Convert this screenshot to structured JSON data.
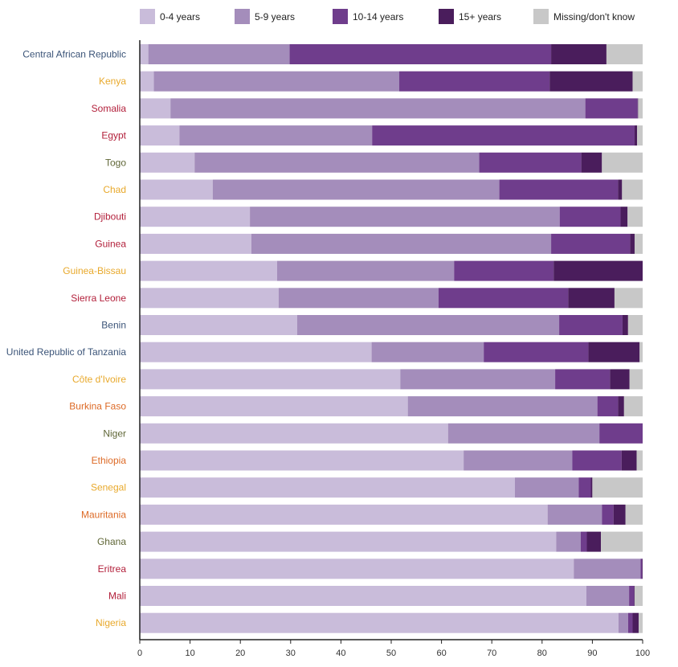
{
  "chart_data": {
    "type": "bar",
    "orientation": "horizontal",
    "stacked": true,
    "title": "",
    "xlabel": "",
    "ylabel": "",
    "xlim": [
      0,
      100
    ],
    "xticks": [
      0,
      10,
      20,
      30,
      40,
      50,
      60,
      70,
      80,
      90,
      100
    ],
    "legend_position": "top",
    "categories": [
      "Central African Republic",
      "Kenya",
      "Somalia",
      "Egypt",
      "Togo",
      "Chad",
      "Djibouti",
      "Guinea",
      "Guinea-Bissau",
      "Sierra Leone",
      "Benin",
      "United Republic of Tanzania",
      "Côte d'Ivoire",
      "Burkina Faso",
      "Niger",
      "Ethiopia",
      "Senegal",
      "Mauritania",
      "Ghana",
      "Eritrea",
      "Mali",
      "Nigeria"
    ],
    "category_colors": [
      "#3b5478",
      "#e8a92c",
      "#b21f3a",
      "#b21f3a",
      "#5f6636",
      "#e8a92c",
      "#b21f3a",
      "#b21f3a",
      "#e8a92c",
      "#b21f3a",
      "#3b5478",
      "#3b5478",
      "#e8a92c",
      "#dd6a26",
      "#5f6636",
      "#dd6a26",
      "#e8a92c",
      "#dd6a26",
      "#5f6636",
      "#b21f3a",
      "#b21f3a",
      "#e8a92c"
    ],
    "series": [
      {
        "name": "0-4 years",
        "color": "#c9bcda",
        "values": [
          1.7,
          2.8,
          6.1,
          7.9,
          10.9,
          14.5,
          21.9,
          22.2,
          27.3,
          27.6,
          31.3,
          46.1,
          51.8,
          53.3,
          61.3,
          64.4,
          74.6,
          81.1,
          82.8,
          86.3,
          88.8,
          95.2
        ]
      },
      {
        "name": "5-9 years",
        "color": "#a48dbb",
        "values": [
          28.1,
          48.8,
          82.5,
          38.3,
          56.6,
          57.0,
          61.6,
          59.6,
          35.2,
          31.8,
          52.1,
          22.3,
          30.8,
          37.7,
          30.1,
          21.6,
          12.7,
          10.8,
          4.9,
          13.3,
          8.5,
          1.9
        ]
      },
      {
        "name": "10-14 years",
        "color": "#6f3d8c",
        "values": [
          52.0,
          29.9,
          10.4,
          52.2,
          20.3,
          23.6,
          12.1,
          15.7,
          19.8,
          25.8,
          12.6,
          20.8,
          10.9,
          4.1,
          8.6,
          9.8,
          2.4,
          2.3,
          1.2,
          0.3,
          1.0,
          0.9
        ]
      },
      {
        "name": "15+ years",
        "color": "#4a1d5c",
        "values": [
          11.0,
          16.5,
          0.1,
          0.5,
          4.1,
          0.8,
          1.4,
          0.9,
          17.7,
          9.2,
          1.1,
          10.2,
          3.9,
          1.2,
          0.0,
          3.0,
          0.3,
          2.4,
          2.8,
          0.1,
          0.1,
          1.2
        ]
      },
      {
        "name": "Missing/don't know",
        "color": "#c8c8c8",
        "values": [
          7.2,
          2.0,
          0.9,
          1.1,
          8.1,
          4.1,
          3.0,
          1.6,
          0.0,
          5.6,
          2.9,
          0.6,
          2.6,
          3.7,
          0.0,
          1.2,
          10.0,
          3.4,
          8.3,
          0.0,
          1.6,
          0.8
        ]
      }
    ]
  }
}
